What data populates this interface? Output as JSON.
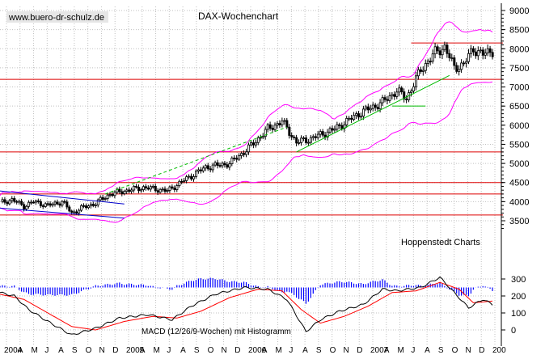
{
  "watermark": "www.buero-dr-schulz.de",
  "title": "DAX-Wochenchart",
  "source_label": "Hoppenstedt Charts",
  "indicator_label": "MACD (12/26/9-Wochen) mit Histogramm",
  "colors": {
    "background": "#ffffff",
    "candles": "#000000",
    "bollinger": "#ff00ff",
    "horizontal_lines": "#dd0000",
    "trend_up": "#00bb00",
    "trend_channel": "#0000cc",
    "histogram": "#0000ff",
    "macd": "#000000",
    "signal": "#ff0000",
    "grid": "#c0c0c0"
  },
  "chart_data": [
    {
      "type": "candlestick",
      "title": "DAX-Wochenchart",
      "y_ticks": [
        3500,
        4000,
        4500,
        5000,
        5500,
        6000,
        6500,
        7000,
        7500,
        8000,
        8500,
        9000
      ],
      "ylim": [
        3100,
        9100
      ],
      "x_tick_labels": [
        "2004",
        "A",
        "M",
        "J",
        "A",
        "S",
        "O",
        "N",
        "D",
        "2005",
        "A",
        "M",
        "J",
        "A",
        "S",
        "O",
        "N",
        "D",
        "2006",
        "A",
        "M",
        "J",
        "A",
        "S",
        "O",
        "N",
        "D",
        "2007",
        "A",
        "M",
        "J",
        "A",
        "S",
        "O",
        "N",
        "D",
        "200"
      ],
      "x_range_weeks": [
        0,
        207
      ],
      "grid": true,
      "weekly_close_anchors": [
        {
          "week": 0,
          "value": 3970
        },
        {
          "week": 5,
          "value": 4050
        },
        {
          "week": 10,
          "value": 3880
        },
        {
          "week": 14,
          "value": 4000
        },
        {
          "week": 20,
          "value": 3900
        },
        {
          "week": 26,
          "value": 4000
        },
        {
          "week": 30,
          "value": 3700
        },
        {
          "week": 34,
          "value": 3830
        },
        {
          "week": 40,
          "value": 3960
        },
        {
          "week": 46,
          "value": 4200
        },
        {
          "week": 52,
          "value": 4280
        },
        {
          "week": 60,
          "value": 4370
        },
        {
          "week": 66,
          "value": 4320
        },
        {
          "week": 70,
          "value": 4280
        },
        {
          "week": 78,
          "value": 4600
        },
        {
          "week": 86,
          "value": 4900
        },
        {
          "week": 96,
          "value": 5000
        },
        {
          "week": 104,
          "value": 5400
        },
        {
          "week": 112,
          "value": 5900
        },
        {
          "week": 118,
          "value": 6100
        },
        {
          "week": 124,
          "value": 5550
        },
        {
          "week": 130,
          "value": 5650
        },
        {
          "week": 140,
          "value": 5900
        },
        {
          "week": 150,
          "value": 6300
        },
        {
          "week": 160,
          "value": 6600
        },
        {
          "week": 166,
          "value": 6900
        },
        {
          "week": 170,
          "value": 6700
        },
        {
          "week": 176,
          "value": 7450
        },
        {
          "week": 182,
          "value": 7900
        },
        {
          "week": 186,
          "value": 8050
        },
        {
          "week": 190,
          "value": 7500
        },
        {
          "week": 194,
          "value": 7600
        },
        {
          "week": 198,
          "value": 8000
        },
        {
          "week": 202,
          "value": 7850
        },
        {
          "week": 206,
          "value": 7950
        }
      ],
      "horizontal_lines": [
        8150,
        7200,
        5300,
        4500,
        4200,
        3650
      ],
      "trend_lines": [
        {
          "color": "green",
          "style": "dashed",
          "from": {
            "week": 44,
            "value": 4200
          },
          "to": {
            "week": 120,
            "value": 5950
          }
        },
        {
          "color": "green",
          "style": "solid",
          "from": {
            "week": 124,
            "value": 5300
          },
          "to": {
            "week": 188,
            "value": 7300
          }
        },
        {
          "color": "green",
          "style": "solid",
          "from": {
            "week": 164,
            "value": 6500
          },
          "to": {
            "week": 178,
            "value": 6500
          }
        },
        {
          "color": "blue",
          "style": "solid",
          "from": {
            "week": 0,
            "value": 4280
          },
          "to": {
            "week": 52,
            "value": 3940
          }
        },
        {
          "color": "blue",
          "style": "solid",
          "from": {
            "week": 0,
            "value": 3830
          },
          "to": {
            "week": 52,
            "value": 3570
          }
        }
      ]
    },
    {
      "type": "macd",
      "title": "MACD (12/26/9-Wochen) mit Histogramm",
      "y_ticks": [
        0,
        100,
        200,
        300
      ],
      "ylim": [
        -100,
        350
      ],
      "macd_anchors": [
        {
          "week": 0,
          "value": 220
        },
        {
          "week": 6,
          "value": 200
        },
        {
          "week": 12,
          "value": 120
        },
        {
          "week": 20,
          "value": 50
        },
        {
          "week": 30,
          "value": -30
        },
        {
          "week": 40,
          "value": 10
        },
        {
          "week": 50,
          "value": 70
        },
        {
          "week": 62,
          "value": 90
        },
        {
          "week": 72,
          "value": 60
        },
        {
          "week": 80,
          "value": 140
        },
        {
          "week": 90,
          "value": 210
        },
        {
          "week": 102,
          "value": 250
        },
        {
          "week": 112,
          "value": 240
        },
        {
          "week": 120,
          "value": 180
        },
        {
          "week": 128,
          "value": -10
        },
        {
          "week": 134,
          "value": 60
        },
        {
          "week": 142,
          "value": 110
        },
        {
          "week": 152,
          "value": 150
        },
        {
          "week": 160,
          "value": 240
        },
        {
          "week": 166,
          "value": 230
        },
        {
          "week": 176,
          "value": 250
        },
        {
          "week": 184,
          "value": 310
        },
        {
          "week": 190,
          "value": 220
        },
        {
          "week": 196,
          "value": 130
        },
        {
          "week": 202,
          "value": 180
        },
        {
          "week": 206,
          "value": 150
        }
      ],
      "signal_anchors": [
        {
          "week": 0,
          "value": 210
        },
        {
          "week": 10,
          "value": 180
        },
        {
          "week": 20,
          "value": 100
        },
        {
          "week": 30,
          "value": 20
        },
        {
          "week": 40,
          "value": 0
        },
        {
          "week": 52,
          "value": 50
        },
        {
          "week": 64,
          "value": 80
        },
        {
          "week": 74,
          "value": 70
        },
        {
          "week": 84,
          "value": 110
        },
        {
          "week": 96,
          "value": 190
        },
        {
          "week": 108,
          "value": 240
        },
        {
          "week": 118,
          "value": 230
        },
        {
          "week": 126,
          "value": 120
        },
        {
          "week": 134,
          "value": 40
        },
        {
          "week": 144,
          "value": 80
        },
        {
          "week": 154,
          "value": 140
        },
        {
          "week": 164,
          "value": 220
        },
        {
          "week": 174,
          "value": 230
        },
        {
          "week": 184,
          "value": 280
        },
        {
          "week": 192,
          "value": 240
        },
        {
          "week": 198,
          "value": 160
        },
        {
          "week": 206,
          "value": 170
        }
      ]
    }
  ]
}
